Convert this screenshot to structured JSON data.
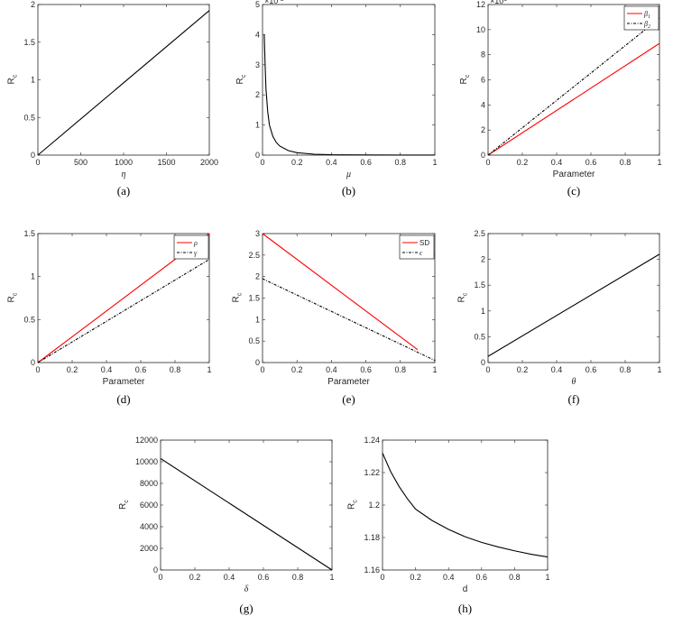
{
  "chart_data": [
    {
      "id": "a",
      "type": "line",
      "caption": "(a)",
      "xlabel": "η",
      "xlabel_italic": true,
      "ylabel": "R",
      "ylabel_sub": "c",
      "xlim": [
        0,
        2000
      ],
      "ylim": [
        0,
        2
      ],
      "xticks": [
        0,
        500,
        1000,
        1500,
        2000
      ],
      "yticks": [
        0,
        0.5,
        1,
        1.5,
        2
      ],
      "exponent": null,
      "series": [
        {
          "name": "",
          "color": "#000000",
          "dash": false,
          "x": [
            0,
            2000
          ],
          "y": [
            0,
            1.92
          ]
        }
      ],
      "legend": null
    },
    {
      "id": "b",
      "type": "line",
      "caption": "(b)",
      "xlabel": "μ",
      "xlabel_italic": true,
      "ylabel": "R",
      "ylabel_sub": "c",
      "xlim": [
        0,
        1
      ],
      "ylim": [
        0,
        5
      ],
      "xticks": [
        0,
        0.2,
        0.4,
        0.6,
        0.8,
        1
      ],
      "yticks": [
        0,
        1,
        2,
        3,
        4,
        5
      ],
      "exponent": "-3",
      "series": [
        {
          "name": "",
          "color": "#000000",
          "dash": false,
          "x": [
            0.01,
            0.015,
            0.02,
            0.03,
            0.04,
            0.06,
            0.08,
            0.1,
            0.15,
            0.2,
            0.3,
            0.4,
            0.6,
            0.8,
            1
          ],
          "y": [
            4,
            3.0,
            2.2,
            1.45,
            1.0,
            0.62,
            0.42,
            0.3,
            0.15,
            0.08,
            0.03,
            0.012,
            0.005,
            0.003,
            0.002
          ]
        }
      ],
      "legend": null
    },
    {
      "id": "c",
      "type": "line",
      "caption": "(c)",
      "xlabel": "Parameter",
      "xlabel_italic": false,
      "ylabel": "R",
      "ylabel_sub": "c",
      "xlim": [
        0,
        1
      ],
      "ylim": [
        0,
        12
      ],
      "xticks": [
        0,
        0.2,
        0.4,
        0.6,
        0.8,
        1
      ],
      "yticks": [
        0,
        2,
        4,
        6,
        8,
        10,
        12
      ],
      "exponent": "6",
      "series": [
        {
          "name": "β",
          "sub": "1",
          "color": "#ff0000",
          "dash": false,
          "x": [
            0,
            1
          ],
          "y": [
            0,
            8.9
          ]
        },
        {
          "name": "β",
          "sub": "2",
          "color": "#000000",
          "dash": true,
          "x": [
            0,
            1
          ],
          "y": [
            0,
            10.9
          ]
        }
      ],
      "legend": "top-right"
    },
    {
      "id": "d",
      "type": "line",
      "caption": "(d)",
      "xlabel": "Parameter",
      "xlabel_italic": false,
      "ylabel": "R",
      "ylabel_sub": "c",
      "xlim": [
        0,
        1
      ],
      "ylim": [
        0,
        1.5
      ],
      "xticks": [
        0,
        0.2,
        0.4,
        0.6,
        0.8,
        1
      ],
      "yticks": [
        0,
        0.5,
        1,
        1.5
      ],
      "exponent": null,
      "series": [
        {
          "name": "ρ",
          "color": "#ff0000",
          "dash": false,
          "x": [
            0,
            1
          ],
          "y": [
            0,
            1.5
          ]
        },
        {
          "name": "γ",
          "color": "#000000",
          "dash": true,
          "x": [
            0,
            1
          ],
          "y": [
            0,
            1.2
          ]
        }
      ],
      "legend": "top-right"
    },
    {
      "id": "e",
      "type": "line",
      "caption": "(e)",
      "xlabel": "Parameter",
      "xlabel_italic": false,
      "ylabel": "R",
      "ylabel_sub": "c",
      "xlim": [
        0,
        1
      ],
      "ylim": [
        0,
        3
      ],
      "xticks": [
        0,
        0.2,
        0.4,
        0.6,
        0.8,
        1
      ],
      "yticks": [
        0,
        0.5,
        1,
        1.5,
        2,
        2.5,
        3
      ],
      "exponent": null,
      "series": [
        {
          "name": "SD",
          "color": "#ff0000",
          "dash": false,
          "x": [
            0,
            0.9
          ],
          "y": [
            3,
            0.3
          ]
        },
        {
          "name": "ϵ",
          "color": "#000000",
          "dash": true,
          "x": [
            0,
            1
          ],
          "y": [
            1.95,
            0.05
          ]
        }
      ],
      "legend": "top-right"
    },
    {
      "id": "f",
      "type": "line",
      "caption": "(f)",
      "xlabel": "θ",
      "xlabel_italic": true,
      "ylabel": "R",
      "ylabel_sub": "c",
      "xlim": [
        0,
        1
      ],
      "ylim": [
        0,
        2.5
      ],
      "xticks": [
        0,
        0.2,
        0.4,
        0.6,
        0.8,
        1
      ],
      "yticks": [
        0,
        0.5,
        1,
        1.5,
        2,
        2.5
      ],
      "exponent": null,
      "series": [
        {
          "name": "",
          "color": "#000000",
          "dash": false,
          "x": [
            0,
            1
          ],
          "y": [
            0.12,
            2.1
          ]
        }
      ],
      "legend": null
    },
    {
      "id": "g",
      "type": "line",
      "caption": "(g)",
      "xlabel": "δ",
      "xlabel_italic": true,
      "ylabel": "R",
      "ylabel_sub": "c",
      "xlim": [
        0,
        1
      ],
      "ylim": [
        0,
        12000
      ],
      "xticks": [
        0,
        0.2,
        0.4,
        0.6,
        0.8,
        1
      ],
      "yticks": [
        0,
        2000,
        4000,
        6000,
        8000,
        10000,
        12000
      ],
      "exponent": null,
      "series": [
        {
          "name": "",
          "color": "#000000",
          "dash": false,
          "x": [
            0,
            1
          ],
          "y": [
            10300,
            0
          ]
        }
      ],
      "legend": null
    },
    {
      "id": "h",
      "type": "line",
      "caption": "(h)",
      "xlabel": "d",
      "xlabel_italic": false,
      "ylabel": "R",
      "ylabel_sub": "c",
      "xlim": [
        0,
        1
      ],
      "ylim": [
        1.16,
        1.24
      ],
      "xticks": [
        0,
        0.2,
        0.4,
        0.6,
        0.8,
        1
      ],
      "yticks": [
        1.16,
        1.18,
        1.2,
        1.22,
        1.24
      ],
      "exponent": null,
      "series": [
        {
          "name": "",
          "color": "#000000",
          "dash": false,
          "x": [
            0,
            0.05,
            0.1,
            0.15,
            0.2,
            0.3,
            0.4,
            0.5,
            0.6,
            0.7,
            0.8,
            0.9,
            1
          ],
          "y": [
            1.232,
            1.2205,
            1.2115,
            1.204,
            1.1975,
            1.1905,
            1.185,
            1.1805,
            1.177,
            1.1742,
            1.1718,
            1.1697,
            1.168
          ]
        }
      ],
      "legend": null
    }
  ]
}
